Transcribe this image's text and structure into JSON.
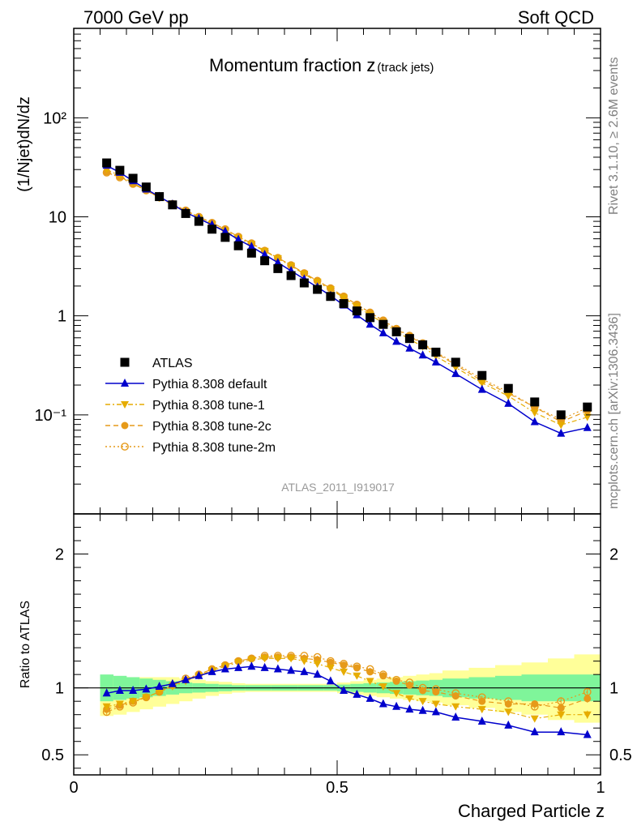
{
  "header": {
    "energy_label": "7000 GeV pp",
    "process_label": "Soft QCD",
    "right_label_top": "Rivet 3.1.10, ≥ 2.6M events",
    "right_label_bottom": "mcplots.cern.ch [arXiv:1306.3436]"
  },
  "colors": {
    "data": "#000000",
    "default": "#0000cc",
    "tune1": "#e6ac00",
    "tune2c": "#e69a1a",
    "tune2m": "#e69a1a",
    "band_inner": "#7ff59a",
    "band_outer": "#ffff99"
  },
  "chart_data": [
    {
      "type": "scatter",
      "panel": "main",
      "title": "Momentum fraction z",
      "title_sub": "(track jets)",
      "analysis_label": "ATLAS_2011_I919017",
      "ylabel": "(1/Njet)dN/dz",
      "xlabel": "",
      "xlim": [
        0,
        1
      ],
      "ylim_log": [
        0.01,
        800
      ],
      "log_y": true,
      "y_tick_labels": [
        "10⁻¹",
        "1",
        "10",
        "10²"
      ],
      "y_tick_values": [
        0.1,
        1,
        10,
        100
      ],
      "x": [
        0.0625,
        0.0875,
        0.1125,
        0.1375,
        0.1625,
        0.1875,
        0.2125,
        0.2375,
        0.2625,
        0.2875,
        0.3125,
        0.3375,
        0.3625,
        0.3875,
        0.4125,
        0.4375,
        0.4625,
        0.4875,
        0.5125,
        0.5375,
        0.5625,
        0.5875,
        0.6125,
        0.6375,
        0.6625,
        0.6875,
        0.725,
        0.775,
        0.825,
        0.875,
        0.925,
        0.975
      ],
      "legend_position": "left-middle",
      "series": [
        {
          "name": "ATLAS",
          "key": "atlas",
          "marker": "square",
          "values": [
            35,
            29.5,
            24.5,
            20,
            16,
            13.2,
            10.8,
            9.0,
            7.5,
            6.2,
            5.1,
            4.3,
            3.6,
            3.0,
            2.55,
            2.15,
            1.85,
            1.57,
            1.33,
            1.12,
            0.96,
            0.82,
            0.69,
            0.59,
            0.51,
            0.43,
            0.34,
            0.25,
            0.185,
            0.135,
            0.1,
            0.12
          ]
        },
        {
          "name": "Pythia 8.308 default",
          "key": "default",
          "marker": "triangle-up",
          "values": [
            33,
            28,
            23,
            19,
            16,
            13.4,
            11.1,
            9.6,
            8.3,
            7.1,
            5.9,
            5.0,
            4.15,
            3.45,
            2.85,
            2.35,
            1.95,
            1.6,
            1.28,
            1.02,
            0.82,
            0.67,
            0.55,
            0.47,
            0.4,
            0.34,
            0.26,
            0.18,
            0.13,
            0.085,
            0.065,
            0.074
          ]
        },
        {
          "name": "Pythia 8.308 tune-1",
          "key": "tune1",
          "marker": "triangle-down",
          "values": [
            30,
            26,
            22,
            18.5,
            15.5,
            13.2,
            11.2,
            9.7,
            8.4,
            7.2,
            6.1,
            5.3,
            4.5,
            3.8,
            3.2,
            2.65,
            2.2,
            1.85,
            1.52,
            1.25,
            1.02,
            0.85,
            0.7,
            0.58,
            0.49,
            0.39,
            0.3,
            0.21,
            0.155,
            0.105,
            0.079,
            0.095
          ]
        },
        {
          "name": "Pythia 8.308 tune-2c",
          "key": "tune2c",
          "marker": "circle",
          "values": [
            28.5,
            25.5,
            21.5,
            18.5,
            15.8,
            13.5,
            11.6,
            10.0,
            8.7,
            7.5,
            6.3,
            5.4,
            4.55,
            3.85,
            3.25,
            2.7,
            2.26,
            1.9,
            1.57,
            1.3,
            1.08,
            0.89,
            0.73,
            0.62,
            0.52,
            0.42,
            0.32,
            0.22,
            0.165,
            0.12,
            0.085,
            0.11
          ]
        },
        {
          "name": "Pythia 8.308 tune-2m",
          "key": "tune2m",
          "marker": "circle-open",
          "values": [
            28,
            25,
            21.5,
            18.5,
            15.7,
            13.5,
            11.6,
            10.0,
            8.7,
            7.5,
            6.3,
            5.4,
            4.55,
            3.85,
            3.25,
            2.7,
            2.26,
            1.9,
            1.57,
            1.3,
            1.08,
            0.9,
            0.74,
            0.63,
            0.53,
            0.43,
            0.33,
            0.23,
            0.17,
            0.12,
            0.09,
            0.118
          ]
        }
      ]
    },
    {
      "type": "line",
      "panel": "ratio",
      "ylabel": "Ratio to ATLAS",
      "xlabel": "Charged Particle z",
      "xlim": [
        0,
        1
      ],
      "ylim": [
        0.35,
        2.3
      ],
      "x_tick_labels": [
        "0",
        "0.5",
        "1"
      ],
      "x_tick_values": [
        0,
        0.5,
        1
      ],
      "y_tick_labels": [
        "0.5",
        "1",
        "2"
      ],
      "y_tick_values": [
        0.5,
        1,
        2
      ],
      "reference_line": 1,
      "band_edges": [
        0.05,
        0.075,
        0.1,
        0.125,
        0.15,
        0.175,
        0.2,
        0.225,
        0.25,
        0.275,
        0.3,
        0.325,
        0.35,
        0.375,
        0.4,
        0.425,
        0.45,
        0.475,
        0.5,
        0.525,
        0.55,
        0.575,
        0.6,
        0.625,
        0.65,
        0.675,
        0.7,
        0.75,
        0.8,
        0.85,
        0.9,
        0.95,
        1.0
      ],
      "band_inner_lo": [
        0.9,
        0.91,
        0.92,
        0.93,
        0.94,
        0.95,
        0.96,
        0.965,
        0.97,
        0.975,
        0.98,
        0.98,
        0.98,
        0.98,
        0.98,
        0.98,
        0.98,
        0.98,
        0.975,
        0.97,
        0.965,
        0.96,
        0.955,
        0.95,
        0.945,
        0.94,
        0.93,
        0.92,
        0.91,
        0.9,
        0.9,
        0.9
      ],
      "band_inner_hi": [
        1.1,
        1.09,
        1.08,
        1.07,
        1.06,
        1.05,
        1.04,
        1.035,
        1.03,
        1.025,
        1.02,
        1.02,
        1.02,
        1.02,
        1.02,
        1.02,
        1.02,
        1.02,
        1.025,
        1.03,
        1.035,
        1.04,
        1.045,
        1.05,
        1.055,
        1.06,
        1.07,
        1.08,
        1.09,
        1.1,
        1.1,
        1.1
      ],
      "band_outer_lo": [
        0.79,
        0.8,
        0.82,
        0.84,
        0.86,
        0.88,
        0.9,
        0.92,
        0.94,
        0.955,
        0.965,
        0.97,
        0.97,
        0.97,
        0.97,
        0.97,
        0.97,
        0.97,
        0.96,
        0.95,
        0.94,
        0.93,
        0.92,
        0.91,
        0.9,
        0.89,
        0.87,
        0.85,
        0.82,
        0.8,
        0.76,
        0.74
      ],
      "band_outer_hi": [
        1.07,
        1.08,
        1.08,
        1.08,
        1.08,
        1.08,
        1.07,
        1.06,
        1.05,
        1.045,
        1.035,
        1.03,
        1.03,
        1.03,
        1.03,
        1.03,
        1.03,
        1.03,
        1.04,
        1.05,
        1.06,
        1.07,
        1.08,
        1.09,
        1.1,
        1.11,
        1.13,
        1.15,
        1.17,
        1.19,
        1.22,
        1.25
      ],
      "series": [
        {
          "key": "default",
          "values": [
            0.96,
            0.98,
            0.98,
            0.99,
            1.01,
            1.03,
            1.06,
            1.09,
            1.12,
            1.14,
            1.15,
            1.16,
            1.15,
            1.14,
            1.13,
            1.12,
            1.1,
            1.05,
            0.98,
            0.95,
            0.92,
            0.88,
            0.86,
            0.84,
            0.83,
            0.82,
            0.78,
            0.75,
            0.72,
            0.67,
            0.67,
            0.65
          ],
          "errors": [
            0.01,
            0.01,
            0.01,
            0.01,
            0.01,
            0.01,
            0.01,
            0.01,
            0.01,
            0.01,
            0.01,
            0.01,
            0.01,
            0.01,
            0.01,
            0.01,
            0.01,
            0.01,
            0.01,
            0.01,
            0.01,
            0.01,
            0.01,
            0.01,
            0.01,
            0.01,
            0.01,
            0.01,
            0.01,
            0.015,
            0.02,
            0.02
          ]
        },
        {
          "key": "tune1",
          "values": [
            0.86,
            0.88,
            0.9,
            0.93,
            0.97,
            1.01,
            1.05,
            1.09,
            1.13,
            1.16,
            1.19,
            1.21,
            1.22,
            1.22,
            1.22,
            1.2,
            1.18,
            1.15,
            1.12,
            1.09,
            1.05,
            1.01,
            0.96,
            0.92,
            0.9,
            0.88,
            0.86,
            0.84,
            0.82,
            0.77,
            0.8,
            0.8
          ],
          "errors": [
            0.02,
            0.01,
            0.01,
            0.01,
            0.01,
            0.01,
            0.01,
            0.01,
            0.01,
            0.01,
            0.01,
            0.01,
            0.01,
            0.01,
            0.01,
            0.01,
            0.01,
            0.01,
            0.01,
            0.01,
            0.01,
            0.01,
            0.01,
            0.01,
            0.01,
            0.01,
            0.01,
            0.01,
            0.015,
            0.02,
            0.03,
            0.03
          ]
        },
        {
          "key": "tune2c",
          "values": [
            0.84,
            0.87,
            0.9,
            0.93,
            0.97,
            1.02,
            1.06,
            1.1,
            1.14,
            1.17,
            1.2,
            1.22,
            1.23,
            1.23,
            1.23,
            1.22,
            1.21,
            1.19,
            1.17,
            1.15,
            1.12,
            1.09,
            1.05,
            1.02,
            0.98,
            0.97,
            0.94,
            0.9,
            0.88,
            0.88,
            0.85,
            0.92
          ],
          "errors": [
            0.02,
            0.01,
            0.01,
            0.01,
            0.01,
            0.01,
            0.01,
            0.01,
            0.01,
            0.01,
            0.01,
            0.01,
            0.01,
            0.01,
            0.01,
            0.01,
            0.01,
            0.01,
            0.01,
            0.01,
            0.01,
            0.01,
            0.01,
            0.01,
            0.01,
            0.01,
            0.01,
            0.01,
            0.015,
            0.02,
            0.03,
            0.03
          ]
        },
        {
          "key": "tune2m",
          "values": [
            0.82,
            0.86,
            0.89,
            0.93,
            0.97,
            1.02,
            1.07,
            1.1,
            1.14,
            1.17,
            1.2,
            1.22,
            1.24,
            1.24,
            1.24,
            1.24,
            1.23,
            1.2,
            1.18,
            1.16,
            1.14,
            1.1,
            1.06,
            1.04,
            1.0,
            0.99,
            0.96,
            0.93,
            0.9,
            0.86,
            0.9,
            0.97
          ],
          "errors": [
            0.02,
            0.01,
            0.01,
            0.01,
            0.01,
            0.01,
            0.01,
            0.01,
            0.01,
            0.01,
            0.01,
            0.01,
            0.01,
            0.01,
            0.01,
            0.01,
            0.01,
            0.01,
            0.01,
            0.01,
            0.01,
            0.01,
            0.01,
            0.01,
            0.01,
            0.01,
            0.01,
            0.01,
            0.015,
            0.02,
            0.03,
            0.03
          ]
        }
      ]
    }
  ]
}
